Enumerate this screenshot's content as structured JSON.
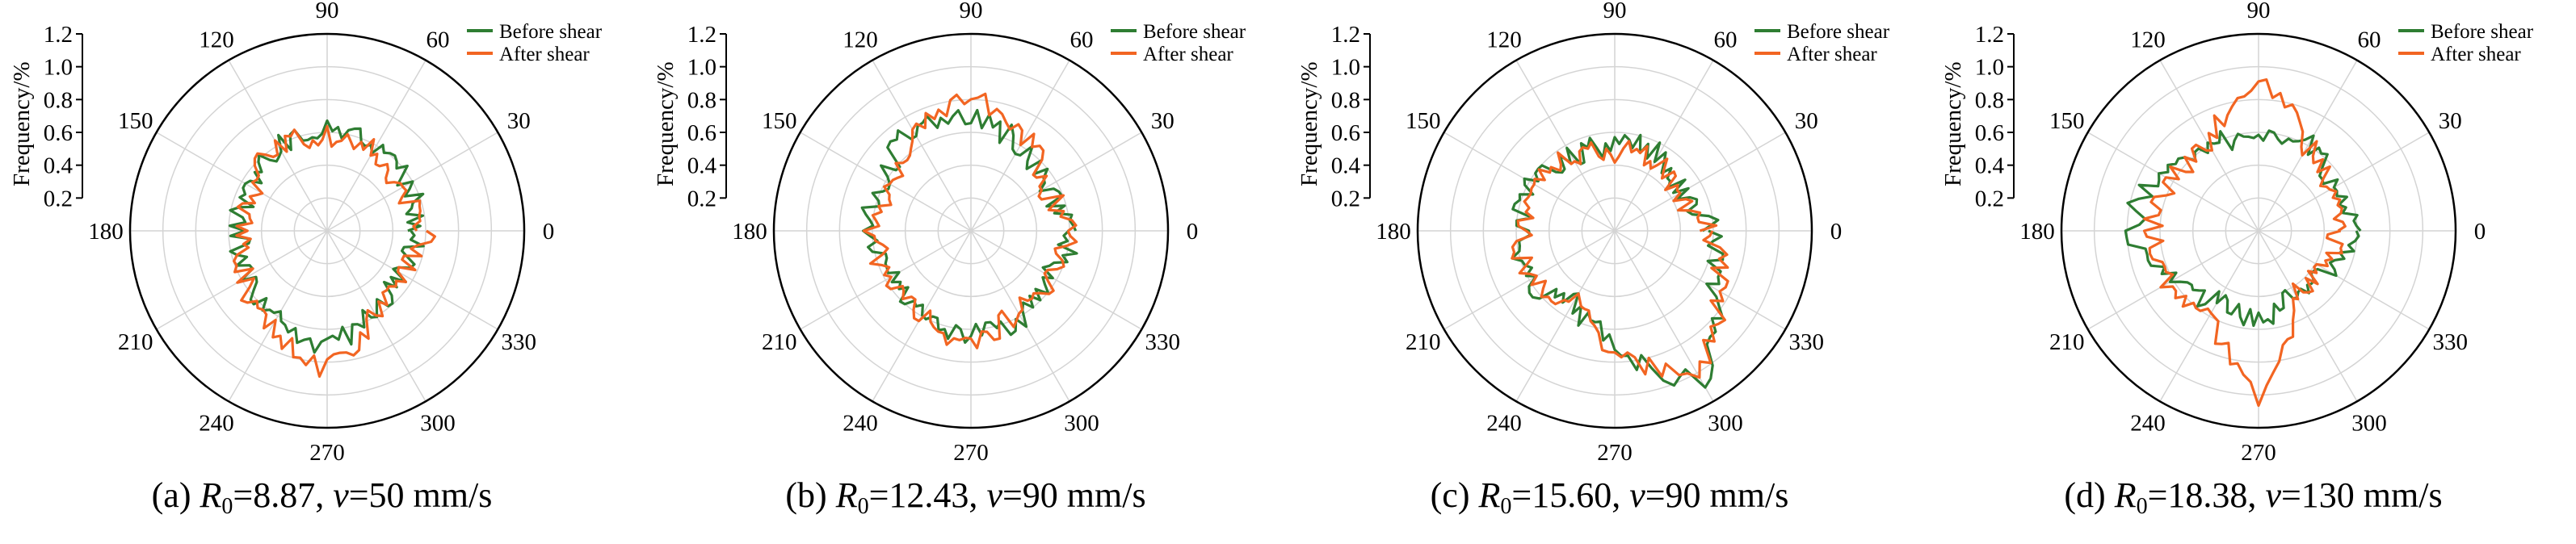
{
  "colors": {
    "before": "#2E7D32",
    "after": "#F26522",
    "grid": "#d4d4d4",
    "axis": "#000000"
  },
  "charts": [
    {
      "caption": {
        "prefix": "(a) ",
        "r_symbol": "R",
        "r_sub": "0",
        "r_value": "=8.87, ",
        "v_symbol": "v",
        "v_value": "=50 mm/s"
      },
      "chart_data": {
        "type": "polar-line",
        "ylabel": "Frequency/%",
        "r_ticks": [
          "0.2",
          "0.4",
          "0.6",
          "0.8",
          "1.0",
          "1.2"
        ],
        "r_range": [
          0,
          1.2
        ],
        "angle_labels": [
          "0",
          "30",
          "60",
          "90",
          "120",
          "150",
          "180",
          "210",
          "240",
          "270",
          "300",
          "330"
        ],
        "legend": [
          "Before shear",
          "After shear"
        ],
        "legend_position": "top-right",
        "series": [
          {
            "name": "Before shear",
            "color": "#2E7D32",
            "angles": [
              0,
              30,
              60,
              90,
              120,
              150,
              180,
              210,
              240,
              270,
              300,
              330,
              360
            ],
            "values": [
              0.55,
              0.56,
              0.6,
              0.63,
              0.59,
              0.55,
              0.53,
              0.57,
              0.62,
              0.7,
              0.55,
              0.52,
              0.55
            ]
          },
          {
            "name": "After shear",
            "color": "#F26522",
            "angles": [
              0,
              30,
              60,
              90,
              120,
              150,
              180,
              210,
              240,
              270,
              300,
              330,
              360
            ],
            "values": [
              0.6,
              0.5,
              0.58,
              0.57,
              0.6,
              0.52,
              0.5,
              0.58,
              0.66,
              0.85,
              0.56,
              0.5,
              0.6
            ]
          }
        ]
      }
    },
    {
      "caption": {
        "prefix": "(b) ",
        "r_symbol": "R",
        "r_sub": "0",
        "r_value": "=12.43, ",
        "v_symbol": "v",
        "v_value": "=90 mm/s"
      },
      "chart_data": {
        "type": "polar-line",
        "ylabel": "Frequency/%",
        "r_ticks": [
          "0.2",
          "0.4",
          "0.6",
          "0.8",
          "1.0",
          "1.2"
        ],
        "r_range": [
          0,
          1.2
        ],
        "angle_labels": [
          "0",
          "30",
          "60",
          "90",
          "120",
          "150",
          "180",
          "210",
          "240",
          "270",
          "300",
          "330"
        ],
        "legend": [
          "Before shear",
          "After shear"
        ],
        "legend_position": "top-right",
        "series": [
          {
            "name": "Before shear",
            "color": "#2E7D32",
            "angles": [
              0,
              30,
              60,
              90,
              120,
              150,
              180,
              210,
              240,
              270,
              300,
              330,
              360
            ],
            "values": [
              0.63,
              0.5,
              0.6,
              0.68,
              0.72,
              0.6,
              0.62,
              0.52,
              0.58,
              0.64,
              0.62,
              0.55,
              0.63
            ]
          },
          {
            "name": "After shear",
            "color": "#F26522",
            "angles": [
              0,
              30,
              60,
              90,
              120,
              150,
              180,
              210,
              240,
              270,
              300,
              330,
              360
            ],
            "values": [
              0.58,
              0.52,
              0.66,
              0.8,
              0.7,
              0.55,
              0.6,
              0.56,
              0.6,
              0.68,
              0.55,
              0.58,
              0.58
            ]
          }
        ]
      }
    },
    {
      "caption": {
        "prefix": "(c) ",
        "r_symbol": "R",
        "r_sub": "0",
        "r_value": "=15.60, ",
        "v_symbol": "v",
        "v_value": "=90 mm/s"
      },
      "chart_data": {
        "type": "polar-line",
        "ylabel": "Frequency/%",
        "r_ticks": [
          "0.2",
          "0.4",
          "0.6",
          "0.8",
          "1.0",
          "1.2"
        ],
        "r_range": [
          0,
          1.2
        ],
        "angle_labels": [
          "0",
          "30",
          "60",
          "90",
          "120",
          "150",
          "180",
          "210",
          "240",
          "270",
          "300",
          "330"
        ],
        "legend": [
          "Before shear",
          "After shear"
        ],
        "legend_position": "top-right",
        "series": [
          {
            "name": "Before shear",
            "color": "#2E7D32",
            "angles": [
              0,
              30,
              60,
              90,
              120,
              150,
              180,
              210,
              240,
              270,
              300,
              330,
              360
            ],
            "values": [
              0.6,
              0.45,
              0.55,
              0.52,
              0.52,
              0.58,
              0.56,
              0.62,
              0.5,
              0.68,
              1.05,
              0.68,
              0.6
            ]
          },
          {
            "name": "After shear",
            "color": "#F26522",
            "angles": [
              0,
              30,
              60,
              90,
              120,
              150,
              180,
              210,
              240,
              270,
              300,
              330,
              360
            ],
            "values": [
              0.58,
              0.4,
              0.5,
              0.48,
              0.5,
              0.6,
              0.56,
              0.6,
              0.48,
              0.72,
              1.0,
              0.72,
              0.58
            ]
          }
        ]
      }
    },
    {
      "caption": {
        "prefix": "(d) ",
        "r_symbol": "R",
        "r_sub": "0",
        "r_value": "=18.38, ",
        "v_symbol": "v",
        "v_value": "=130 mm/s"
      },
      "chart_data": {
        "type": "polar-line",
        "ylabel": "Frequency/%",
        "r_ticks": [
          "0.2",
          "0.4",
          "0.6",
          "0.8",
          "1.0",
          "1.2"
        ],
        "r_range": [
          0,
          1.2
        ],
        "angle_labels": [
          "0",
          "30",
          "60",
          "90",
          "120",
          "150",
          "180",
          "210",
          "240",
          "270",
          "300",
          "330"
        ],
        "legend": [
          "Before shear",
          "After shear"
        ],
        "legend_position": "top-right",
        "series": [
          {
            "name": "Before shear",
            "color": "#2E7D32",
            "angles": [
              0,
              30,
              60,
              90,
              120,
              150,
              180,
              210,
              240,
              270,
              300,
              330,
              360
            ],
            "values": [
              0.62,
              0.52,
              0.6,
              0.6,
              0.58,
              0.7,
              0.78,
              0.6,
              0.5,
              0.55,
              0.42,
              0.5,
              0.62
            ]
          },
          {
            "name": "After shear",
            "color": "#F26522",
            "angles": [
              0,
              30,
              60,
              90,
              120,
              150,
              180,
              210,
              240,
              270,
              300,
              330,
              360
            ],
            "values": [
              0.48,
              0.5,
              0.6,
              0.9,
              0.6,
              0.6,
              0.65,
              0.65,
              0.55,
              1.0,
              0.45,
              0.45,
              0.48
            ]
          }
        ]
      }
    }
  ]
}
